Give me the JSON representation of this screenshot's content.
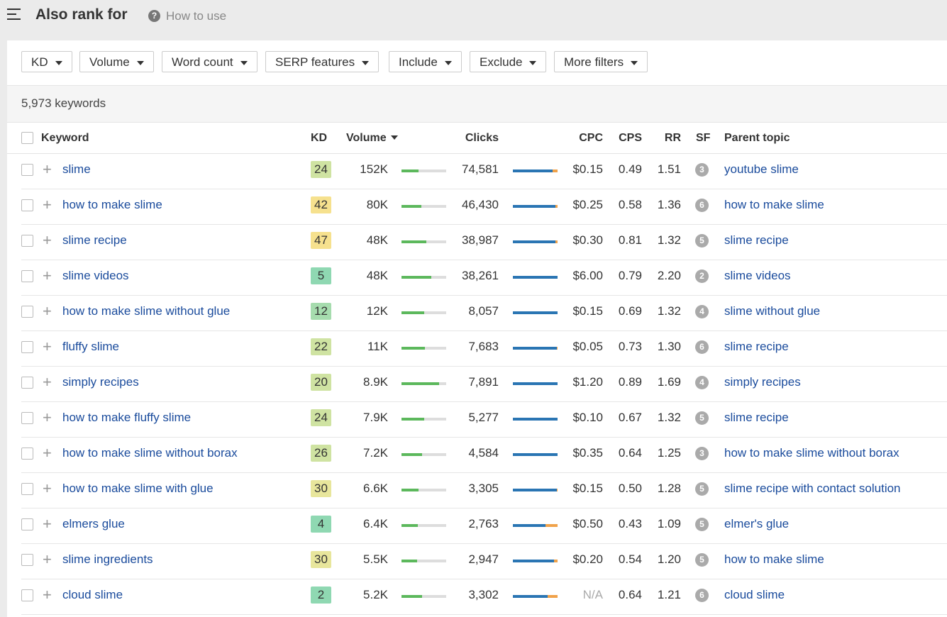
{
  "header": {
    "title": "Also rank for",
    "help": "How to use"
  },
  "filters": [
    "KD",
    "Volume",
    "Word count",
    "SERP features",
    "Include",
    "Exclude",
    "More filters"
  ],
  "summary": "5,973 keywords",
  "table": {
    "columns": [
      "Keyword",
      "KD",
      "Volume",
      "Clicks",
      "CPC",
      "CPS",
      "RR",
      "SF",
      "Parent topic"
    ],
    "rows": [
      [
        "slime",
        24,
        "152K",
        "74,581",
        "$0.15",
        "0.49",
        "1.51",
        3,
        "youtube slime"
      ],
      [
        "how to make slime",
        42,
        "80K",
        "46,430",
        "$0.25",
        "0.58",
        "1.36",
        6,
        "how to make slime"
      ],
      [
        "slime recipe",
        47,
        "48K",
        "38,987",
        "$0.30",
        "0.81",
        "1.32",
        5,
        "slime recipe"
      ],
      [
        "slime videos",
        5,
        "48K",
        "38,261",
        "$6.00",
        "0.79",
        "2.20",
        2,
        "slime videos"
      ],
      [
        "how to make slime without glue",
        12,
        "12K",
        "8,057",
        "$0.15",
        "0.69",
        "1.32",
        4,
        "slime without glue"
      ],
      [
        "fluffy slime",
        22,
        "11K",
        "7,683",
        "$0.05",
        "0.73",
        "1.30",
        6,
        "slime recipe"
      ],
      [
        "simply recipes",
        20,
        "8.9K",
        "7,891",
        "$1.20",
        "0.89",
        "1.69",
        4,
        "simply recipes"
      ],
      [
        "how to make fluffy slime",
        24,
        "7.9K",
        "5,277",
        "$0.10",
        "0.67",
        "1.32",
        5,
        "slime recipe"
      ],
      [
        "how to make slime without borax",
        26,
        "7.2K",
        "4,584",
        "$0.35",
        "0.64",
        "1.25",
        3,
        "how to make slime without borax"
      ],
      [
        "how to make slime with glue",
        30,
        "6.6K",
        "3,305",
        "$0.15",
        "0.50",
        "1.28",
        5,
        "slime recipe with contact solution"
      ],
      [
        "elmers glue",
        4,
        "6.4K",
        "2,763",
        "$0.50",
        "0.43",
        "1.09",
        5,
        "elmer's glue"
      ],
      [
        "slime ingredients",
        30,
        "5.5K",
        "2,947",
        "$0.20",
        "0.54",
        "1.20",
        5,
        "how to make slime"
      ],
      [
        "cloud slime",
        2,
        "5.2K",
        "3,302",
        "N/A",
        "0.64",
        "1.21",
        6,
        "cloud slime"
      ]
    ]
  }
}
